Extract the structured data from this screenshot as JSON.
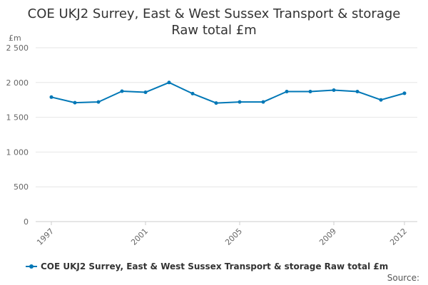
{
  "chart_data": {
    "type": "line",
    "title_line1": "COE UKJ2 Surrey, East & West Sussex Transport & storage",
    "title_line2": "Raw total £m",
    "ylabel": "£m",
    "xlabel": "",
    "ylim": [
      0,
      2500
    ],
    "yticks": [
      0,
      500,
      1000,
      1500,
      2000,
      2500
    ],
    "ytick_labels": [
      "0",
      "500",
      "1 000",
      "1 500",
      "2 000",
      "2 500"
    ],
    "xlim": [
      1997,
      2012
    ],
    "xticks": [
      1997,
      2001,
      2005,
      2009,
      2012
    ],
    "xtick_labels": [
      "1997",
      "2001",
      "2005",
      "2009",
      "2012"
    ],
    "grid": true,
    "legend": "bottom-left",
    "series": [
      {
        "name": "COE UKJ2 Surrey, East & West Sussex Transport & storage Raw total £m",
        "color": "#0077b6",
        "x": [
          1997,
          1998,
          1999,
          2000,
          2001,
          2002,
          2003,
          2004,
          2005,
          2006,
          2007,
          2008,
          2009,
          2010,
          2011,
          2012
        ],
        "values": [
          1790,
          1710,
          1720,
          1875,
          1860,
          2000,
          1840,
          1705,
          1720,
          1720,
          1870,
          1870,
          1890,
          1870,
          1750,
          1845
        ]
      }
    ]
  },
  "source_label": "Source:"
}
